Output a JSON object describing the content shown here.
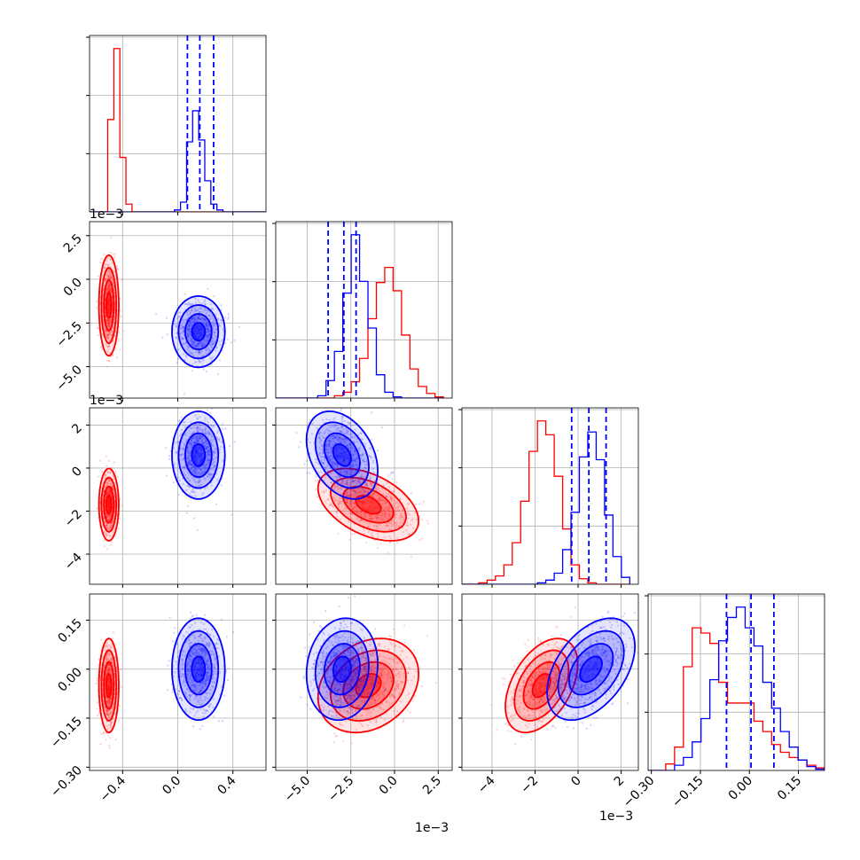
{
  "chart_data": {
    "type": "corner",
    "n_params": 4,
    "ranges": [
      [
        -0.64,
        0.64
      ],
      [
        -0.0068,
        0.0033
      ],
      [
        -0.0054,
        0.0028
      ],
      [
        -0.31,
        0.23
      ]
    ],
    "ticks": [
      [
        -0.4,
        0.0,
        0.4
      ],
      [
        -0.005,
        -0.0025,
        0.0,
        0.0025
      ],
      [
        -0.004,
        -0.002,
        0.0,
        0.002
      ],
      [
        -0.3,
        -0.15,
        0.0,
        0.15
      ]
    ],
    "tick_labels": [
      [
        "−0.4",
        "0.0",
        "0.4"
      ],
      [
        "−5.0",
        "−2.5",
        "0.0",
        "2.5"
      ],
      [
        "−4",
        "−2",
        "0",
        "2"
      ],
      [
        "−0.30",
        "−0.15",
        "0.00",
        "0.15"
      ]
    ],
    "offset_label": "1e−3",
    "grid": true,
    "series": [
      {
        "color": "#ff0000",
        "means": [
          -0.5,
          -0.0015,
          -0.0017,
          -0.05
        ],
        "stds": [
          0.03,
          0.0012,
          0.0007,
          0.06
        ],
        "corr": {
          "1-2": -0.45,
          "1-3": 0.25,
          "2-3": 0.45
        }
      },
      {
        "color": "#0000ff",
        "means": [
          0.15,
          -0.003,
          0.0006,
          0.0
        ],
        "stds": [
          0.08,
          0.00085,
          0.00085,
          0.065
        ],
        "corr": {
          "1-2": -0.35,
          "1-3": 0.1,
          "2-3": 0.45
        }
      }
    ],
    "quantile_lines": {
      "color": "#0000ff",
      "values": [
        [
          0.07,
          0.16,
          0.26
        ],
        [
          -0.0038,
          -0.0029,
          -0.0022
        ],
        [
          -0.0003,
          0.0005,
          0.0013
        ],
        [
          -0.07,
          0.005,
          0.075
        ]
      ]
    },
    "hist": {
      "edges": [
        [
          -0.64,
          -0.596,
          -0.552,
          -0.508,
          -0.464,
          -0.42,
          -0.376,
          -0.332,
          -0.288,
          -0.244,
          -0.2,
          -0.156,
          -0.112,
          -0.068,
          -0.024,
          0.02,
          0.064,
          0.108,
          0.152,
          0.196,
          0.24,
          0.284,
          0.328,
          0.372,
          0.416,
          0.46,
          0.504,
          0.548,
          0.592,
          0.636
        ],
        [
          -0.0068,
          -0.00632,
          -0.00584,
          -0.00536,
          -0.00488,
          -0.0044,
          -0.00392,
          -0.00344,
          -0.00296,
          -0.00248,
          -0.002,
          -0.00152,
          -0.00104,
          -0.00056,
          -8e-05,
          0.0004,
          0.00088,
          0.00136,
          0.00184,
          0.00232,
          0.0028
        ],
        [
          -0.0054,
          -0.00501,
          -0.00462,
          -0.00423,
          -0.00384,
          -0.00345,
          -0.00306,
          -0.00267,
          -0.00228,
          -0.00189,
          -0.0015,
          -0.00111,
          -0.00072,
          -0.00033,
          6e-05,
          0.00045,
          0.00084,
          0.00123,
          0.00162,
          0.00201,
          0.0024
        ],
        [
          -0.31,
          -0.283,
          -0.256,
          -0.229,
          -0.202,
          -0.175,
          -0.148,
          -0.121,
          -0.094,
          -0.067,
          -0.04,
          -0.013,
          0.014,
          0.041,
          0.068,
          0.095,
          0.122,
          0.149,
          0.176,
          0.203,
          0.23
        ]
      ],
      "red": [
        [
          0,
          0,
          0,
          95,
          168,
          56,
          8,
          0,
          0,
          0,
          0,
          0,
          0,
          0,
          0,
          0,
          0,
          0,
          0,
          0,
          0,
          0,
          0,
          0,
          0,
          0,
          0,
          0,
          0
        ],
        [
          0,
          0,
          0,
          0,
          0,
          0,
          0,
          2,
          5,
          14,
          34,
          68,
          99,
          112,
          92,
          54,
          25,
          10,
          4,
          1
        ],
        [
          0,
          0,
          1,
          3,
          6,
          14,
          30,
          60,
          96,
          118,
          108,
          78,
          40,
          14,
          4,
          1,
          0,
          0,
          0,
          0
        ],
        [
          0,
          0,
          5,
          18,
          80,
          110,
          106,
          98,
          68,
          52,
          52,
          52,
          38,
          30,
          20,
          14,
          10,
          8,
          4,
          2
        ]
      ],
      "blue": [
        [
          0,
          0,
          0,
          0,
          0,
          0,
          0,
          0,
          0,
          0,
          0,
          0,
          0,
          0,
          2,
          10,
          72,
          104,
          74,
          32,
          8,
          2,
          0,
          0,
          0,
          0,
          0,
          0,
          0
        ],
        [
          0,
          0,
          0,
          0,
          0,
          2,
          15,
          40,
          90,
          140,
          100,
          60,
          20,
          5,
          1,
          0,
          0,
          0,
          0,
          0
        ],
        [
          0,
          0,
          0,
          0,
          0,
          0,
          0,
          0,
          0,
          1,
          3,
          8,
          25,
          52,
          92,
          110,
          90,
          50,
          20,
          5
        ],
        [
          0,
          0,
          0,
          4,
          10,
          22,
          40,
          70,
          100,
          118,
          126,
          110,
          96,
          68,
          48,
          30,
          18,
          8,
          3,
          1
        ]
      ]
    }
  }
}
